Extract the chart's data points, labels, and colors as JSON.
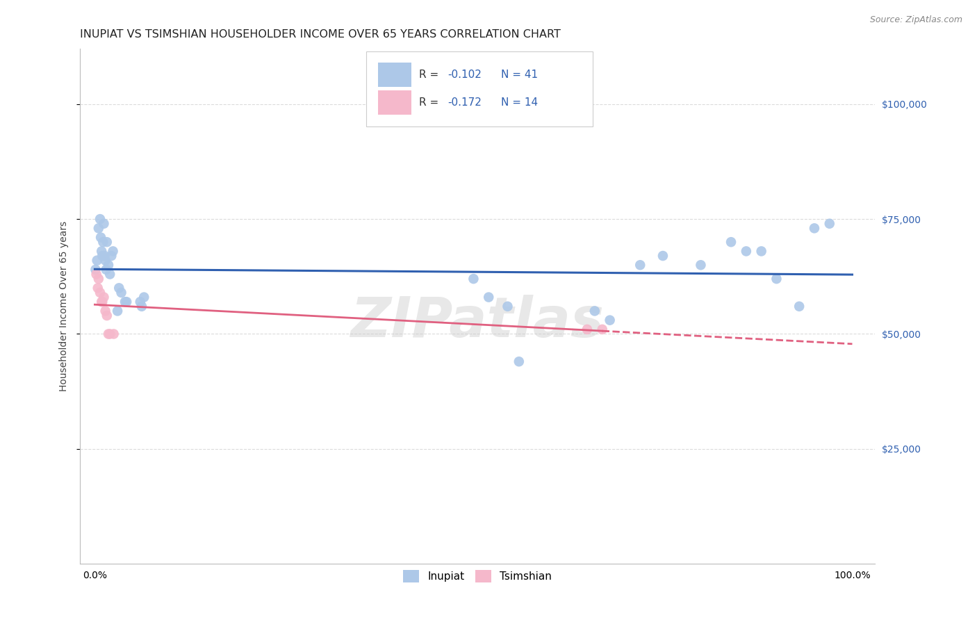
{
  "title": "INUPIAT VS TSIMSHIAN HOUSEHOLDER INCOME OVER 65 YEARS CORRELATION CHART",
  "source": "Source: ZipAtlas.com",
  "ylabel": "Householder Income Over 65 years",
  "x_tick_labels": [
    "0.0%",
    "100.0%"
  ],
  "y_tick_labels": [
    "$25,000",
    "$50,000",
    "$75,000",
    "$100,000"
  ],
  "y_tick_values": [
    25000,
    50000,
    75000,
    100000
  ],
  "inupiat_R": -0.102,
  "inupiat_N": 41,
  "tsimshian_R": -0.172,
  "tsimshian_N": 14,
  "inupiat_color": "#adc8e8",
  "tsimshian_color": "#f5b8cb",
  "trend_inupiat_color": "#3060b0",
  "trend_tsimshian_color": "#e06080",
  "background_color": "#ffffff",
  "grid_color": "#cccccc",
  "inupiat_x": [
    0.001,
    0.003,
    0.005,
    0.007,
    0.008,
    0.009,
    0.01,
    0.011,
    0.012,
    0.013,
    0.014,
    0.015,
    0.016,
    0.018,
    0.02,
    0.022,
    0.024,
    0.03,
    0.032,
    0.035,
    0.04,
    0.042,
    0.06,
    0.062,
    0.065,
    0.5,
    0.52,
    0.545,
    0.56,
    0.66,
    0.68,
    0.72,
    0.75,
    0.8,
    0.84,
    0.86,
    0.88,
    0.9,
    0.93,
    0.95,
    0.97
  ],
  "inupiat_y": [
    64000,
    66000,
    73000,
    75000,
    71000,
    68000,
    67000,
    70000,
    74000,
    67000,
    66000,
    64000,
    70000,
    65000,
    63000,
    67000,
    68000,
    55000,
    60000,
    59000,
    57000,
    57000,
    57000,
    56000,
    58000,
    62000,
    58000,
    56000,
    44000,
    55000,
    53000,
    65000,
    67000,
    65000,
    70000,
    68000,
    68000,
    62000,
    56000,
    73000,
    74000
  ],
  "tsimshian_x": [
    0.002,
    0.004,
    0.005,
    0.007,
    0.009,
    0.01,
    0.012,
    0.014,
    0.016,
    0.018,
    0.02,
    0.025,
    0.65,
    0.67
  ],
  "tsimshian_y": [
    63000,
    60000,
    62000,
    59000,
    57000,
    57000,
    58000,
    55000,
    54000,
    50000,
    50000,
    50000,
    51000,
    51000
  ],
  "marker_size": 110,
  "watermark": "ZIPatlas",
  "title_fontsize": 11.5,
  "axis_label_fontsize": 10,
  "tick_fontsize": 10,
  "legend_fontsize": 11
}
